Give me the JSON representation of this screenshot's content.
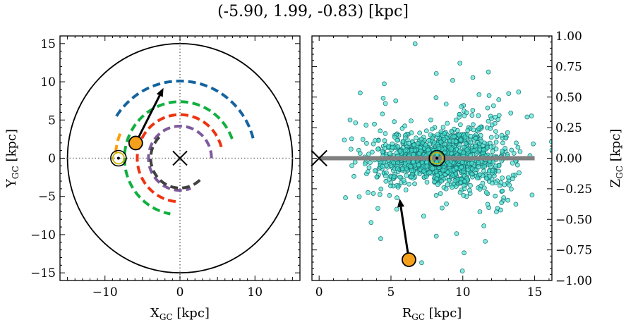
{
  "title": "(-5.90, 1.99, -0.83) [kpc]",
  "colors": {
    "ring_blue": "#1464a0",
    "ring_green": "#10b040",
    "ring_red": "#ee3311",
    "ring_purple": "#7d5a9b",
    "ring_dark": "#404040",
    "ring_orange": "#ff9d0a",
    "marker_orange": "#f5a01a",
    "scatter_fill": "#40e0d0",
    "scatter_edge": "#1a6e6e",
    "plane_gray": "#808080",
    "sun_circle": "#c8b400"
  },
  "chart_data": [
    {
      "type": "scatter",
      "name": "galactic-plane-view",
      "xlabel": "X",
      "xlabel_sub": "GC",
      "xlabel_unit": "[kpc]",
      "ylabel": "Y",
      "ylabel_sub": "GC",
      "ylabel_unit": "[kpc]",
      "xlim": [
        -16,
        16
      ],
      "ylim": [
        -16,
        16
      ],
      "xticks": [
        -10,
        0,
        10
      ],
      "xtick_labels": [
        "−10",
        "0",
        "10"
      ],
      "yticks": [
        -15,
        -10,
        -5,
        0,
        5,
        10,
        15
      ],
      "ytick_labels": [
        "−15",
        "−10",
        "−5",
        "0",
        "5",
        "10",
        "15"
      ],
      "boundary_circle_radius": 15,
      "dotted_crosshair": {
        "x": 0,
        "y": 0
      },
      "galactic_center": {
        "x": 0,
        "y": 0,
        "marker": "x"
      },
      "sun": {
        "x": -8.2,
        "y": 0.0,
        "marker": "circled-dot"
      },
      "object": {
        "x": -5.9,
        "y": 1.99,
        "marker": "orange-circle"
      },
      "velocity_arrow": {
        "from": [
          -5.9,
          1.99
        ],
        "to": [
          -2.2,
          9.2
        ]
      },
      "spiral_arms": [
        {
          "name": "blue",
          "color_key": "ring_blue",
          "radius": 10.1,
          "theta_start_deg": 15,
          "theta_end_deg": 150
        },
        {
          "name": "green",
          "color_key": "ring_green",
          "radius": 7.4,
          "theta_start_deg": 20,
          "theta_end_deg": 260
        },
        {
          "name": "red",
          "color_key": "ring_red",
          "radius": 5.7,
          "theta_start_deg": 15,
          "theta_end_deg": 265
        },
        {
          "name": "purple",
          "color_key": "ring_purple",
          "radius": 4.2,
          "theta_start_deg": 0,
          "theta_end_deg": 290
        },
        {
          "name": "dark",
          "color_key": "ring_dark",
          "radius": 3.9,
          "theta_start_deg": 135,
          "theta_end_deg": 320
        },
        {
          "name": "orange",
          "color_key": "ring_orange",
          "radius": 8.6,
          "theta_start_deg": 158,
          "theta_end_deg": 178
        }
      ]
    },
    {
      "type": "scatter",
      "name": "vertical-profile-view",
      "xlabel": "R",
      "xlabel_sub": "GC",
      "xlabel_unit": "[kpc]",
      "ylabel": "Z",
      "ylabel_sub": "GC",
      "ylabel_unit": "[kpc]",
      "xlim": [
        -0.5,
        16.2
      ],
      "ylim": [
        -1.0,
        1.0
      ],
      "xticks": [
        0,
        5,
        10,
        15
      ],
      "xtick_labels": [
        "0",
        "5",
        "10",
        "15"
      ],
      "yticks": [
        -1.0,
        -0.75,
        -0.5,
        -0.25,
        0.0,
        0.25,
        0.5,
        0.75,
        1.0
      ],
      "ytick_labels": [
        "−1.00",
        "−0.75",
        "−0.50",
        "−0.25",
        "0.00",
        "0.25",
        "0.50",
        "0.75",
        "1.00"
      ],
      "y_axis_side": "right",
      "galactic_plane_line": {
        "x_from": 0,
        "x_to": 15,
        "z": 0
      },
      "galactic_center": {
        "r": 0,
        "z": 0,
        "marker": "x"
      },
      "sun": {
        "r": 8.2,
        "z": 0.0,
        "marker": "circled-dot"
      },
      "object": {
        "r": 6.25,
        "z": -0.83,
        "marker": "orange-circle"
      },
      "velocity_arrow": {
        "from": [
          6.25,
          -0.83
        ],
        "to": [
          5.6,
          -0.33
        ]
      },
      "star_distribution": {
        "count": 1400,
        "center_r": 8.5,
        "r_sigma": 2.3,
        "z_sigma": 0.11,
        "seed": 7
      }
    }
  ]
}
